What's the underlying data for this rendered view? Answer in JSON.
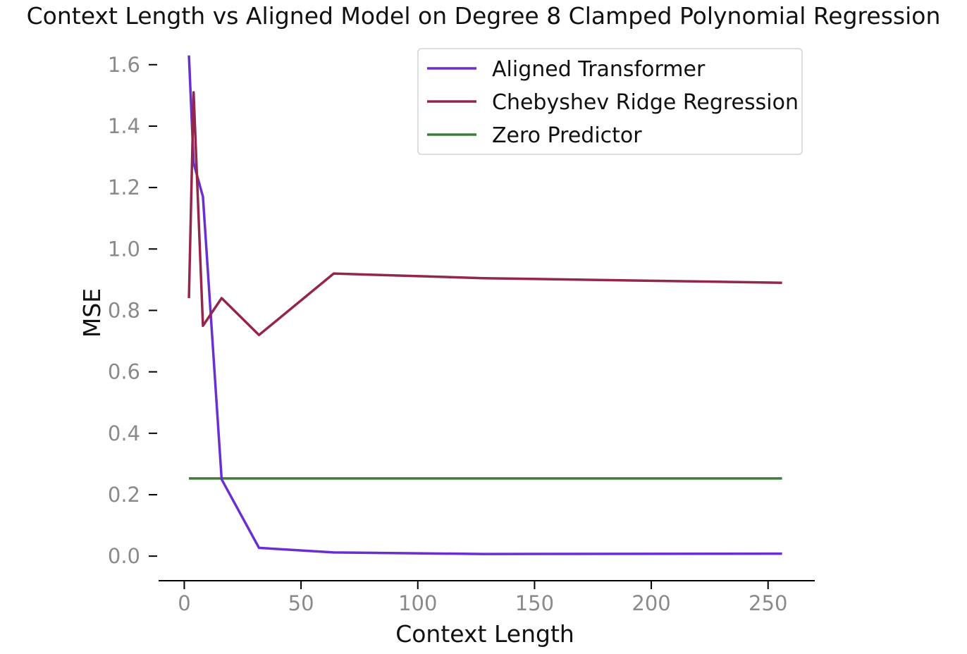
{
  "chart_data": {
    "type": "line",
    "title": "Context Length vs Aligned Model on Degree 8 Clamped Polynomial Regression",
    "xlabel": "Context Length",
    "ylabel": "MSE",
    "xlim": [
      -11,
      270
    ],
    "ylim": [
      -0.08,
      1.65
    ],
    "x_ticks": [
      0,
      50,
      100,
      150,
      200,
      250
    ],
    "y_ticks": [
      0.0,
      0.2,
      0.4,
      0.6,
      0.8,
      1.0,
      1.2,
      1.4,
      1.6
    ],
    "grid": false,
    "legend_position": "upper-right",
    "series": [
      {
        "name": "Aligned Transformer",
        "color": "#6a2fd0",
        "x": [
          2,
          4,
          8,
          16,
          32,
          64,
          128,
          256
        ],
        "y": [
          1.63,
          1.28,
          1.17,
          0.25,
          0.027,
          0.012,
          0.007,
          0.008
        ]
      },
      {
        "name": "Chebyshev Ridge Regression",
        "color": "#932649",
        "x": [
          2,
          4,
          8,
          16,
          32,
          64,
          128,
          256
        ],
        "y": [
          0.84,
          1.51,
          0.75,
          0.84,
          0.72,
          0.92,
          0.905,
          0.89
        ]
      },
      {
        "name": "Zero Predictor",
        "color": "#3d7d37",
        "x": [
          2,
          4,
          8,
          16,
          32,
          64,
          128,
          256
        ],
        "y": [
          0.253,
          0.253,
          0.253,
          0.253,
          0.253,
          0.253,
          0.253,
          0.253
        ]
      }
    ]
  }
}
